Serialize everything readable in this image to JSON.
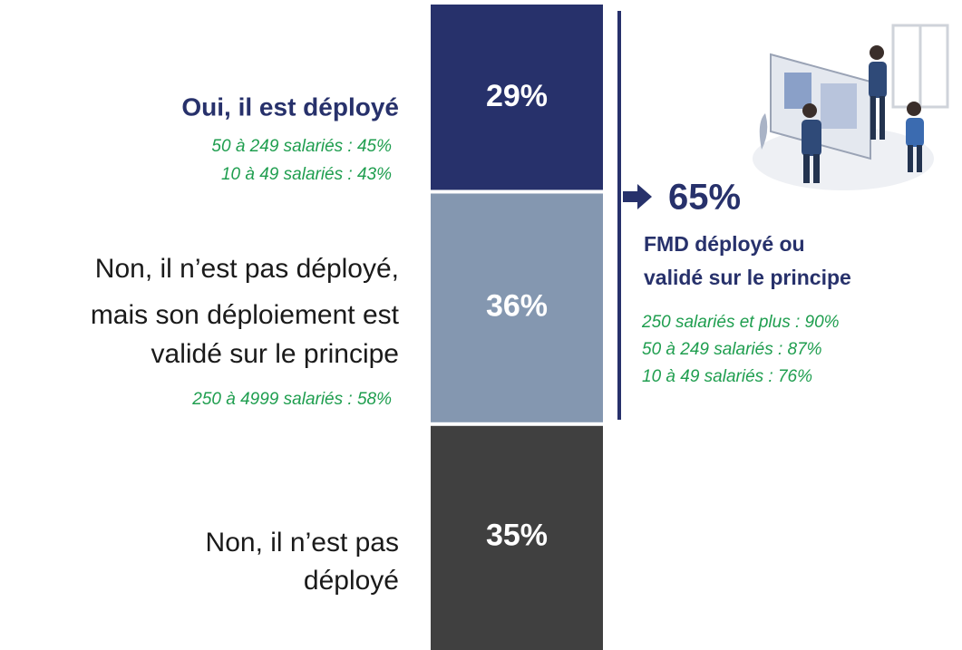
{
  "chart_data": {
    "type": "stacked-bar",
    "categories": [
      [
        "Oui, il est déployé"
      ],
      [
        "Non, il n’est pas déployé,",
        "mais son déploiement est",
        "validé sur le principe"
      ],
      [
        "Non, il n’est pas",
        "déployé"
      ]
    ],
    "values": [
      29,
      36,
      35
    ],
    "value_labels": [
      "29%",
      "36%",
      "35%"
    ],
    "colors": [
      "#27316b",
      "#8497b0",
      "#404040"
    ],
    "ylim": [
      0,
      100
    ],
    "segment_notes": [
      [
        "50 à 249 salariés : 45%",
        "10 à 49 salariés : 43%"
      ],
      [
        "250 à 4999 salariés : 58%"
      ]
    ],
    "summary": {
      "value_label": "65%",
      "label_lines": [
        "FMD déployé ou",
        "validé sur le principe"
      ],
      "notes": [
        "250 salariés et plus : 90%",
        "50 à 249 salariés : 87%",
        "10 à 49 salariés : 76%"
      ]
    }
  }
}
